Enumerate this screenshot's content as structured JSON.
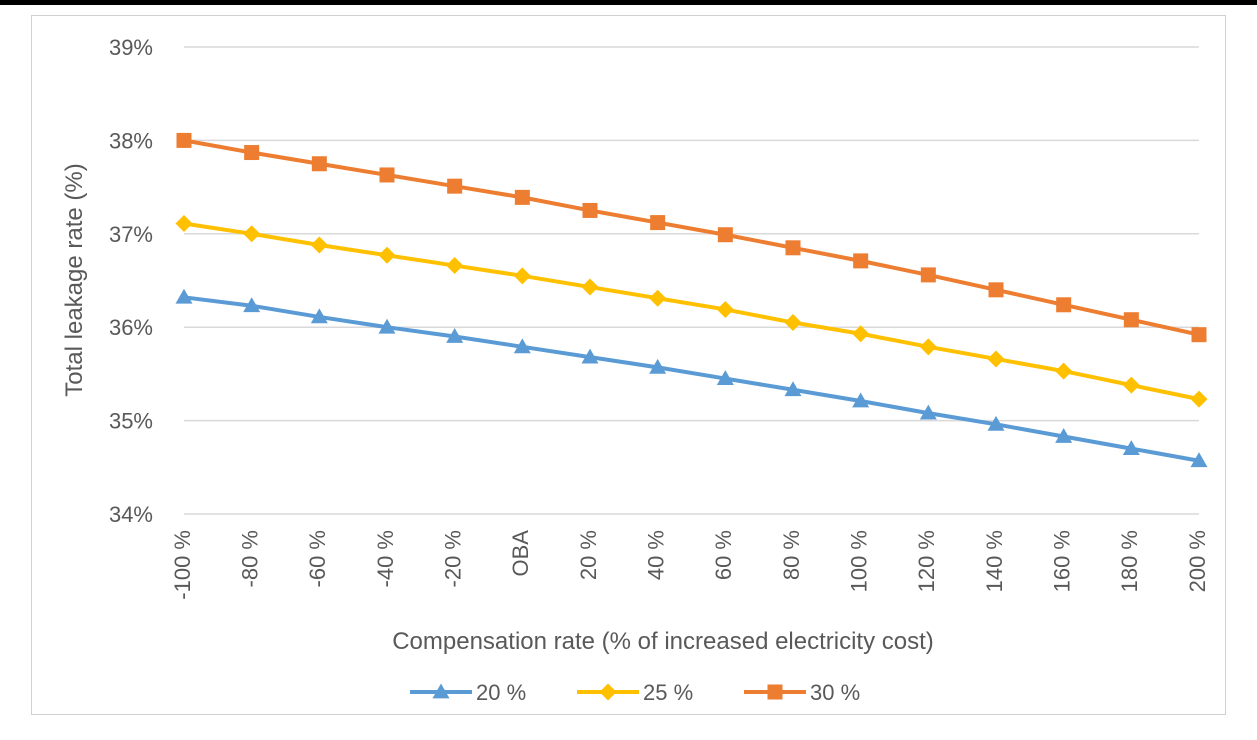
{
  "chart_data": {
    "type": "line",
    "categories": [
      "-100 %",
      "-80 %",
      "-60 %",
      "-40 %",
      "-20 %",
      "OBA",
      "20 %",
      "40 %",
      "60 %",
      "80 %",
      "100 %",
      "120 %",
      "140 %",
      "160 %",
      "180 %",
      "200 %"
    ],
    "series": [
      {
        "name": "20 %",
        "color": "#5b9bd5",
        "marker": "triangle",
        "values": [
          36.32,
          36.23,
          36.11,
          36.0,
          35.9,
          35.79,
          35.68,
          35.57,
          35.45,
          35.33,
          35.21,
          35.08,
          34.96,
          34.83,
          34.7,
          34.57
        ]
      },
      {
        "name": "25 %",
        "color": "#ffc000",
        "marker": "diamond",
        "values": [
          37.11,
          37.0,
          36.88,
          36.77,
          36.66,
          36.55,
          36.43,
          36.31,
          36.19,
          36.05,
          35.93,
          35.79,
          35.66,
          35.53,
          35.38,
          35.23
        ]
      },
      {
        "name": "30 %",
        "color": "#ed7d31",
        "marker": "square",
        "values": [
          38.0,
          37.87,
          37.75,
          37.63,
          37.51,
          37.39,
          37.25,
          37.12,
          36.99,
          36.85,
          36.71,
          36.56,
          36.4,
          36.24,
          36.08,
          35.92
        ]
      }
    ],
    "y_ticks": [
      "34%",
      "35%",
      "36%",
      "37%",
      "38%",
      "39%"
    ],
    "ylim": [
      34,
      39
    ],
    "xlabel": "Compensation rate (% of increased electricity cost)",
    "ylabel": "Total leakage rate (%)",
    "grid": "horizontal",
    "legend_position": "bottom"
  }
}
